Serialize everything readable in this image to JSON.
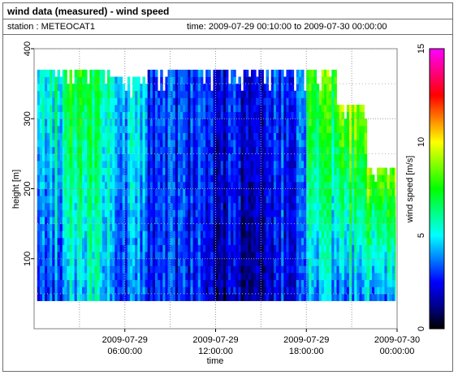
{
  "header": {
    "title": "wind data (measured) - wind speed",
    "station": "station : METEOCAT1",
    "time_range": "time: 2009-07-29 00:10:00 to 2009-07-30 00:00:00"
  },
  "chart_data": {
    "type": "heatmap",
    "title": "wind data (measured) - wind speed",
    "xlabel": "time",
    "ylabel": "height [m]",
    "x_unit": "hours since 2009-07-29 00:00",
    "xlim": [
      0,
      24
    ],
    "ylim": [
      0,
      400
    ],
    "x_ticks": [
      {
        "at": 6,
        "line1": "2009-07-29",
        "line2": "06:00:00"
      },
      {
        "at": 12,
        "line1": "2009-07-29",
        "line2": "12:00:00"
      },
      {
        "at": 18,
        "line1": "2009-07-29",
        "line2": "18:00:00"
      },
      {
        "at": 24,
        "line1": "2009-07-30",
        "line2": "00:00:00"
      }
    ],
    "y_ticks": [
      100,
      200,
      300,
      400
    ],
    "grid": true,
    "colorbar": {
      "label": "wind speed [m/s]",
      "min": 0,
      "max": 15,
      "ticks": [
        0,
        5,
        10,
        15
      ],
      "colormap": "jet-magenta",
      "colors": [
        "#000000",
        "#000090",
        "#0000ff",
        "#0080ff",
        "#00ffff",
        "#00ff80",
        "#00ff00",
        "#80ff00",
        "#ffff00",
        "#ff8000",
        "#ff0000",
        "#ff0080",
        "#ff00ff"
      ]
    },
    "height_range": [
      40,
      365
    ],
    "approximate_profiles": [
      {
        "t_start": 0.2,
        "t_end": 2.0,
        "speed_bottom": 3.5,
        "speed_top": 6.0,
        "top_height": 365
      },
      {
        "t_start": 2.0,
        "t_end": 3.5,
        "speed_bottom": 4.5,
        "speed_top": 7.5,
        "top_height": 365
      },
      {
        "t_start": 3.5,
        "t_end": 5.0,
        "speed_bottom": 5.0,
        "speed_top": 6.5,
        "top_height": 365
      },
      {
        "t_start": 5.0,
        "t_end": 7.5,
        "speed_bottom": 3.5,
        "speed_top": 5.0,
        "top_height": 355
      },
      {
        "t_start": 7.5,
        "t_end": 11.0,
        "speed_bottom": 2.5,
        "speed_top": 2.8,
        "top_height": 365
      },
      {
        "t_start": 11.0,
        "t_end": 16.0,
        "speed_bottom": 1.5,
        "speed_top": 2.5,
        "top_height": 365
      },
      {
        "t_start": 16.0,
        "t_end": 18.0,
        "speed_bottom": 2.5,
        "speed_top": 3.0,
        "top_height": 365
      },
      {
        "t_start": 18.0,
        "t_end": 20.0,
        "speed_bottom": 4.0,
        "speed_top": 8.0,
        "top_height": 365
      },
      {
        "t_start": 20.0,
        "t_end": 22.0,
        "speed_bottom": 4.0,
        "speed_top": 10.0,
        "top_height": 320
      },
      {
        "t_start": 22.0,
        "t_end": 23.9,
        "speed_bottom": 4.0,
        "speed_top": 12.5,
        "top_height": 225
      }
    ]
  }
}
